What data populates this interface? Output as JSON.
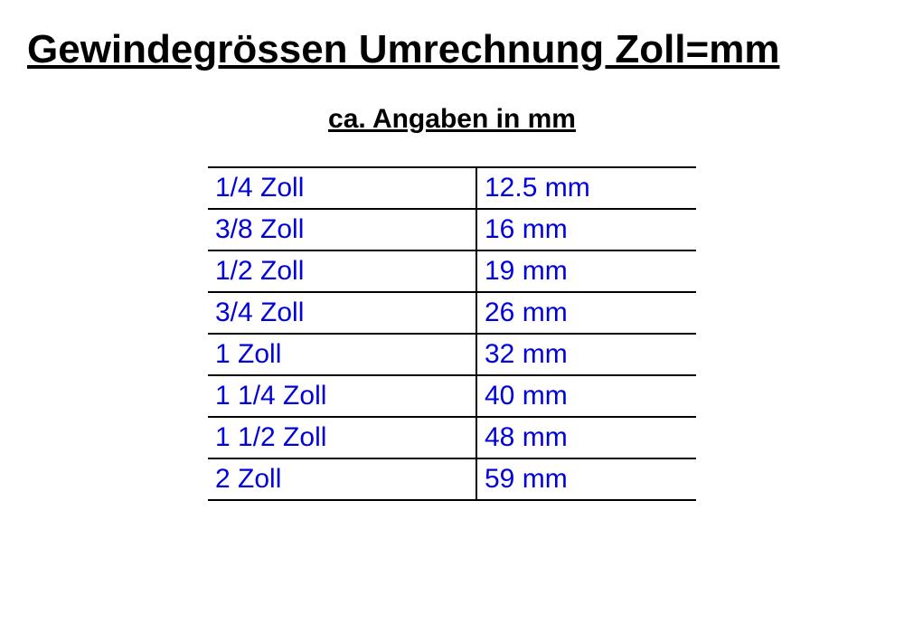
{
  "title": "Gewindegrössen Umrechnung Zoll=mm",
  "subtitle": "ca. Angaben in mm",
  "table": {
    "type": "table",
    "columns": [
      "zoll",
      "mm"
    ],
    "text_color": "#0000dd",
    "border_color": "#000000",
    "background_color": "#ffffff",
    "cell_fontsize": 30,
    "title_fontsize": 44,
    "subtitle_fontsize": 30,
    "rows": [
      {
        "zoll": "1/4 Zoll",
        "mm": "12.5 mm"
      },
      {
        "zoll": "3/8 Zoll",
        "mm": "16 mm"
      },
      {
        "zoll": "1/2 Zoll",
        "mm": "19 mm"
      },
      {
        "zoll": "3/4 Zoll",
        "mm": "26 mm"
      },
      {
        "zoll": "1 Zoll",
        "mm": "32 mm"
      },
      {
        "zoll": "1 1/4 Zoll",
        "mm": "40 mm"
      },
      {
        "zoll": "1 1/2 Zoll",
        "mm": "48 mm"
      },
      {
        "zoll": "2 Zoll",
        "mm": "59 mm"
      }
    ]
  }
}
